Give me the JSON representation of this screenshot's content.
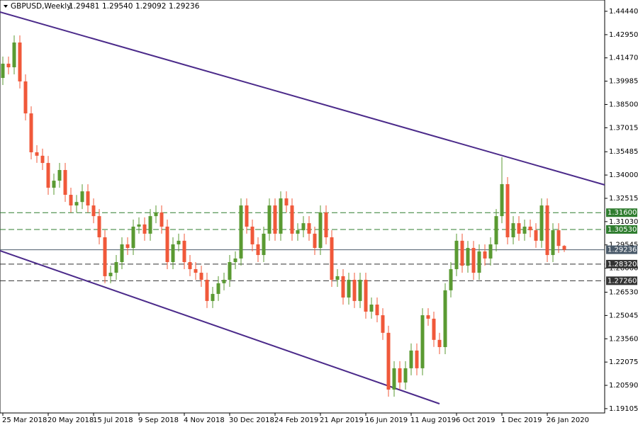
{
  "chart_data": {
    "type": "candlestick",
    "header": {
      "symbol": "GBPUSD,Weekly",
      "values": [
        "1.29481",
        "1.29540",
        "1.29092",
        "1.29236"
      ]
    },
    "categories": [
      "25 Mar 2018",
      null,
      null,
      null,
      null,
      null,
      null,
      null,
      "20 May 2018",
      null,
      null,
      null,
      null,
      null,
      null,
      null,
      "15 Jul 2018",
      null,
      null,
      null,
      null,
      null,
      null,
      null,
      "9 Sep 2018",
      null,
      null,
      null,
      null,
      null,
      null,
      null,
      "4 Nov 2018",
      null,
      null,
      null,
      null,
      null,
      null,
      null,
      "30 Dec 2018",
      null,
      null,
      null,
      null,
      null,
      null,
      null,
      "24 Feb 2019",
      null,
      null,
      null,
      null,
      null,
      null,
      null,
      "21 Apr 2019",
      null,
      null,
      null,
      null,
      null,
      null,
      null,
      "16 Jun 2019",
      null,
      null,
      null,
      null,
      null,
      null,
      null,
      "11 Aug 2019",
      null,
      null,
      null,
      null,
      null,
      null,
      null,
      "6 Oct 2019",
      null,
      null,
      null,
      null,
      null,
      null,
      null,
      "1 Dec 2019",
      null,
      null,
      null,
      null,
      null,
      null,
      null,
      "26 Jan 2020",
      null,
      null,
      null
    ],
    "open": [
      1.4019,
      1.411,
      1.4087,
      1.4245,
      1.3997,
      1.3793,
      1.3545,
      1.3523,
      1.3477,
      1.3319,
      1.3364,
      1.3432,
      1.3274,
      1.3206,
      1.3228,
      1.3296,
      1.3206,
      1.3138,
      1.3003,
      1.2755,
      1.2777,
      1.2845,
      1.2958,
      1.2935,
      1.3071,
      1.3085,
      1.3026,
      1.3138,
      1.3161,
      1.3071,
      1.2845,
      1.2958,
      1.2981,
      1.2845,
      1.28,
      1.2777,
      1.2732,
      1.2597,
      1.2642,
      1.271,
      1.2732,
      1.2845,
      1.2868,
      1.3206,
      1.3071,
      1.2958,
      1.289,
      1.3026,
      1.3206,
      1.3026,
      1.3251,
      1.3206,
      1.3026,
      1.3048,
      1.3093,
      1.3026,
      1.2935,
      1.3161,
      1.3003,
      1.2732,
      1.2755,
      1.2619,
      1.2732,
      1.2597,
      1.2732,
      1.2529,
      1.2574,
      1.2506,
      1.2394,
      1.2032,
      1.2168,
      1.2077,
      1.2168,
      1.2281,
      1.2168,
      1.2506,
      1.2484,
      1.2349,
      1.2303,
      1.2665,
      1.28,
      1.2981,
      1.2822,
      1.2935,
      1.2777,
      1.2913,
      1.2868,
      1.2958,
      1.3138,
      1.3342,
      1.3003,
      1.3093,
      1.3026,
      1.3071,
      1.3048,
      1.2981,
      1.3206,
      1.289,
      1.3048,
      1.29481
    ],
    "high": [
      1.4155,
      1.4155,
      1.429,
      1.429,
      1.4042,
      1.3838,
      1.359,
      1.3568,
      1.3522,
      1.3409,
      1.3477,
      1.3477,
      1.3319,
      1.3273,
      1.3341,
      1.3341,
      1.3251,
      1.3183,
      1.3048,
      1.2822,
      1.289,
      1.3003,
      1.3003,
      1.3116,
      1.313,
      1.313,
      1.3183,
      1.3206,
      1.3206,
      1.3116,
      1.3003,
      1.3026,
      1.3026,
      1.289,
      1.2845,
      1.2822,
      1.2777,
      1.2687,
      1.2755,
      1.2777,
      1.289,
      1.2913,
      1.3251,
      1.3251,
      1.3116,
      1.3003,
      1.3071,
      1.3251,
      1.3251,
      1.3296,
      1.3296,
      1.3251,
      1.3093,
      1.3138,
      1.3138,
      1.3071,
      1.3206,
      1.3206,
      1.3048,
      1.28,
      1.28,
      1.2777,
      1.2777,
      1.2777,
      1.2777,
      1.2619,
      1.2619,
      1.2551,
      1.2439,
      1.2213,
      1.2213,
      1.2213,
      1.2326,
      1.2326,
      1.2551,
      1.2551,
      1.2529,
      1.2394,
      1.271,
      1.2845,
      1.3026,
      1.3026,
      1.298,
      1.298,
      1.2958,
      1.2958,
      1.3003,
      1.3183,
      1.3514,
      1.3387,
      1.3138,
      1.3138,
      1.3116,
      1.3116,
      1.3093,
      1.3251,
      1.3251,
      1.3093,
      1.3093,
      1.2954
    ],
    "low": [
      1.3974,
      1.4042,
      1.4042,
      1.3952,
      1.3748,
      1.35,
      1.3478,
      1.3432,
      1.3274,
      1.3274,
      1.3319,
      1.3229,
      1.3161,
      1.3161,
      1.3183,
      1.3161,
      1.3093,
      1.2958,
      1.271,
      1.271,
      1.2732,
      1.28,
      1.289,
      1.289,
      1.3026,
      1.2981,
      1.2981,
      1.3093,
      1.3026,
      1.28,
      1.28,
      1.2913,
      1.28,
      1.2755,
      1.2732,
      1.2687,
      1.2552,
      1.2552,
      1.2597,
      1.2665,
      1.2687,
      1.28,
      1.2823,
      1.3026,
      1.2913,
      1.2845,
      1.2845,
      1.2981,
      1.2981,
      1.2981,
      1.3161,
      1.2981,
      1.2981,
      1.3003,
      1.2981,
      1.289,
      1.289,
      1.2958,
      1.2687,
      1.2687,
      1.2574,
      1.2574,
      1.2552,
      1.2552,
      1.2484,
      1.2484,
      1.2461,
      1.2349,
      1.1987,
      1.1987,
      1.2032,
      1.2032,
      1.2123,
      1.2123,
      1.2123,
      1.2439,
      1.2304,
      1.2258,
      1.2258,
      1.262,
      1.2755,
      1.2777,
      1.2777,
      1.2732,
      1.2732,
      1.2823,
      1.2823,
      1.2913,
      1.3093,
      1.2958,
      1.2958,
      1.2981,
      1.2981,
      1.3003,
      1.2936,
      1.2936,
      1.2845,
      1.2845,
      1.2903,
      1.29092
    ],
    "close": [
      1.411,
      1.4087,
      1.4245,
      1.3997,
      1.3793,
      1.3545,
      1.3523,
      1.3477,
      1.3319,
      1.3364,
      1.3432,
      1.3274,
      1.3206,
      1.3228,
      1.3296,
      1.3206,
      1.3138,
      1.3003,
      1.2755,
      1.2777,
      1.2845,
      1.2958,
      1.2935,
      1.3071,
      1.3085,
      1.3026,
      1.3138,
      1.3161,
      1.3071,
      1.2845,
      1.2958,
      1.2981,
      1.2845,
      1.28,
      1.2777,
      1.2732,
      1.2597,
      1.2642,
      1.271,
      1.2732,
      1.2845,
      1.2868,
      1.3206,
      1.3071,
      1.2958,
      1.289,
      1.3026,
      1.3206,
      1.3026,
      1.3251,
      1.3206,
      1.3026,
      1.3048,
      1.3093,
      1.3026,
      1.2935,
      1.3161,
      1.3003,
      1.2732,
      1.2755,
      1.2619,
      1.2732,
      1.2597,
      1.2732,
      1.2529,
      1.2574,
      1.2506,
      1.2394,
      1.2032,
      1.2168,
      1.2077,
      1.2168,
      1.2281,
      1.2168,
      1.2506,
      1.2484,
      1.2349,
      1.2303,
      1.2665,
      1.28,
      1.2981,
      1.2822,
      1.2935,
      1.2777,
      1.2913,
      1.2868,
      1.2958,
      1.3138,
      1.3342,
      1.3003,
      1.3093,
      1.3026,
      1.3071,
      1.3048,
      1.2981,
      1.3206,
      1.289,
      1.3048,
      1.2948,
      1.29236
    ],
    "up_color": "#5a9a32",
    "down_color": "#f0583a",
    "ylim": [
      1.1883,
      1.4516
    ],
    "yticks": [
      {
        "value": 1.4444,
        "label": "1.44440"
      },
      {
        "value": 1.4295,
        "label": "1.42950"
      },
      {
        "value": 1.4147,
        "label": "1.41470"
      },
      {
        "value": 1.39985,
        "label": "1.39985"
      },
      {
        "value": 1.385,
        "label": "1.38500"
      },
      {
        "value": 1.37015,
        "label": "1.37015"
      },
      {
        "value": 1.35485,
        "label": "1.35485"
      },
      {
        "value": 1.34,
        "label": "1.34000"
      },
      {
        "value": 1.32515,
        "label": "1.32515"
      },
      {
        "value": 1.3103,
        "label": "1.31030"
      },
      {
        "value": 1.29545,
        "label": "1.29545"
      },
      {
        "value": 1.2806,
        "label": "1.28060"
      },
      {
        "value": 1.2653,
        "label": "1.26530"
      },
      {
        "value": 1.25045,
        "label": "1.25045"
      },
      {
        "value": 1.2356,
        "label": "1.23560"
      },
      {
        "value": 1.22075,
        "label": "1.22075"
      },
      {
        "value": 1.2059,
        "label": "1.20590"
      },
      {
        "value": 1.19105,
        "label": "1.19105"
      }
    ],
    "levels": [
      {
        "value": 1.316,
        "label": "1.31600",
        "color": "#2f7d2f",
        "style": "dashed"
      },
      {
        "value": 1.3053,
        "label": "1.30530",
        "color": "#2f7d2f",
        "style": "dashed"
      },
      {
        "value": 1.29236,
        "label": "1.29236",
        "color": "#4a5a6a",
        "style": "solid"
      },
      {
        "value": 1.2832,
        "label": "1.28320",
        "color": "#333333",
        "style": "dashed"
      },
      {
        "value": 1.2726,
        "label": "1.27260",
        "color": "#333333",
        "style": "dashed"
      }
    ]
  }
}
